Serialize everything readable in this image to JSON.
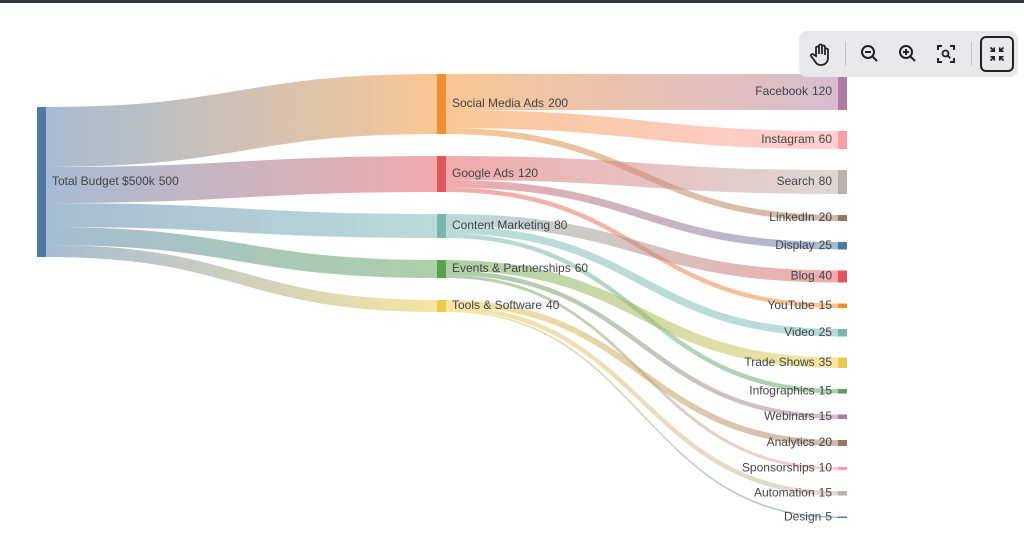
{
  "chart_data": {
    "type": "sankey",
    "nodes": [
      {
        "name": "Total Budget $500k",
        "value": 500,
        "color": "#4e79a7"
      },
      {
        "name": "Social Media Ads",
        "value": 200,
        "color": "#f28e2b"
      },
      {
        "name": "Google Ads",
        "value": 120,
        "color": "#e15759"
      },
      {
        "name": "Content Marketing",
        "value": 80,
        "color": "#76b7b2"
      },
      {
        "name": "Events & Partnerships",
        "value": 60,
        "color": "#59a14f"
      },
      {
        "name": "Tools & Software",
        "value": 40,
        "color": "#edc948"
      },
      {
        "name": "Facebook",
        "value": 120,
        "color": "#b07aa1"
      },
      {
        "name": "Instagram",
        "value": 60,
        "color": "#ff9da7"
      },
      {
        "name": "Search",
        "value": 80,
        "color": "#bab0ac"
      },
      {
        "name": "LinkedIn",
        "value": 20,
        "color": "#9c755f"
      },
      {
        "name": "Display",
        "value": 25,
        "color": "#4e79a7"
      },
      {
        "name": "Blog",
        "value": 40,
        "color": "#e15759"
      },
      {
        "name": "YouTube",
        "value": 15,
        "color": "#f28e2b"
      },
      {
        "name": "Video",
        "value": 25,
        "color": "#76b7b2"
      },
      {
        "name": "Trade Shows",
        "value": 35,
        "color": "#edc948"
      },
      {
        "name": "Infographics",
        "value": 15,
        "color": "#59a14f"
      },
      {
        "name": "Webinars",
        "value": 15,
        "color": "#b07aa1"
      },
      {
        "name": "Analytics",
        "value": 20,
        "color": "#9c755f"
      },
      {
        "name": "Sponsorships",
        "value": 10,
        "color": "#ff9da7"
      },
      {
        "name": "Automation",
        "value": 15,
        "color": "#bab0ac"
      },
      {
        "name": "Design",
        "value": 5,
        "color": "#4e79a7"
      }
    ],
    "links": [
      {
        "source": 0,
        "target": 1,
        "value": 200
      },
      {
        "source": 0,
        "target": 2,
        "value": 120
      },
      {
        "source": 0,
        "target": 3,
        "value": 80
      },
      {
        "source": 0,
        "target": 4,
        "value": 60
      },
      {
        "source": 0,
        "target": 5,
        "value": 40
      },
      {
        "source": 1,
        "target": 6,
        "value": 120
      },
      {
        "source": 1,
        "target": 7,
        "value": 60
      },
      {
        "source": 1,
        "target": 9,
        "value": 20
      },
      {
        "source": 2,
        "target": 8,
        "value": 80
      },
      {
        "source": 2,
        "target": 10,
        "value": 25
      },
      {
        "source": 2,
        "target": 12,
        "value": 15
      },
      {
        "source": 3,
        "target": 11,
        "value": 40
      },
      {
        "source": 3,
        "target": 13,
        "value": 25
      },
      {
        "source": 3,
        "target": 15,
        "value": 15
      },
      {
        "source": 4,
        "target": 14,
        "value": 35
      },
      {
        "source": 4,
        "target": 16,
        "value": 15
      },
      {
        "source": 4,
        "target": 18,
        "value": 10
      },
      {
        "source": 5,
        "target": 17,
        "value": 20
      },
      {
        "source": 5,
        "target": 19,
        "value": 15
      },
      {
        "source": 5,
        "target": 20,
        "value": 5
      }
    ]
  }
}
